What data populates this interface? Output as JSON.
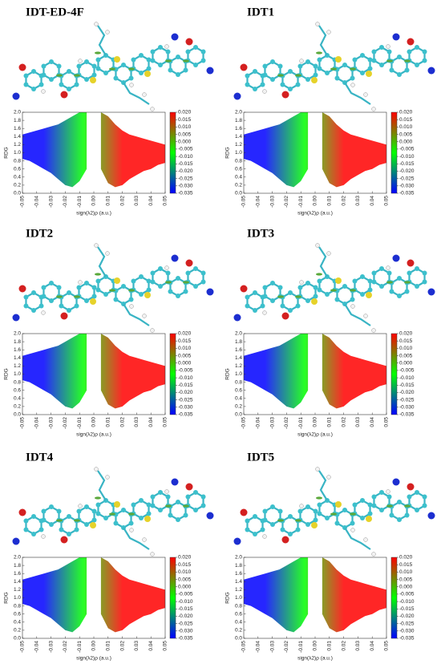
{
  "chart_data": [
    {
      "type": "area",
      "title": "IDT-ED-4F",
      "x_label": "sign(λ2)ρ (a.u.)",
      "y_label": "RDG",
      "x": [
        -0.05,
        -0.045,
        -0.04,
        -0.035,
        -0.03,
        -0.025,
        -0.02,
        -0.015,
        -0.01,
        -0.005,
        0,
        0.005,
        0.01,
        0.015,
        0.02,
        0.025,
        0.03,
        0.035,
        0.04,
        0.045,
        0.05
      ],
      "y_high": [
        1.45,
        1.5,
        1.55,
        1.6,
        1.65,
        1.7,
        1.8,
        1.9,
        2,
        2,
        null,
        2,
        1.9,
        1.7,
        1.55,
        1.45,
        1.4,
        1.35,
        1.3,
        1.25,
        1.2
      ],
      "y_low": [
        0.85,
        0.8,
        0.7,
        0.6,
        0.5,
        0.35,
        0.2,
        0.15,
        0.3,
        0.6,
        null,
        0.6,
        0.25,
        0.15,
        0.2,
        0.35,
        0.45,
        0.55,
        0.6,
        0.7,
        0.75
      ],
      "xlim": [
        -0.05,
        0.05
      ],
      "xticks": [
        -0.05,
        -0.04,
        -0.03,
        -0.02,
        -0.01,
        {
          "value": 0,
          "label": "0.00"
        },
        0.01,
        0.02,
        0.03,
        0.04,
        0.05
      ],
      "ylim": [
        0,
        2
      ],
      "yticks": [
        {
          "value": 0,
          "label": "0.0"
        },
        0.2,
        0.4,
        0.6,
        0.8,
        {
          "value": 1,
          "label": "1.0"
        },
        1.2,
        1.4,
        1.6,
        1.8,
        {
          "value": 2,
          "label": "2.0"
        }
      ],
      "colormap": [
        "#0000ff",
        "#00ff00",
        "#ff0000"
      ],
      "clim": [
        -0.035,
        0.02
      ],
      "cticks": [
        {
          "value": 0.02,
          "label": "0.020"
        },
        0.015,
        {
          "value": 0.01,
          "label": "0.010"
        },
        0.005,
        {
          "value": 0,
          "label": "0.000"
        },
        -0.005,
        {
          "value": -0.01,
          "label": "-0.010"
        },
        -0.015,
        {
          "value": -0.02,
          "label": "-0.020"
        },
        -0.025,
        {
          "value": -0.03,
          "label": "-0.030"
        },
        -0.035
      ]
    },
    {
      "type": "area",
      "title": "IDT1",
      "x_label": "sign(λ2)ρ (a.u.)",
      "y_label": "RDG",
      "x": [
        -0.05,
        -0.045,
        -0.04,
        -0.035,
        -0.03,
        -0.025,
        -0.02,
        -0.015,
        -0.01,
        -0.005,
        0,
        0.005,
        0.01,
        0.015,
        0.02,
        0.025,
        0.03,
        0.035,
        0.04,
        0.045,
        0.05
      ],
      "y_high": [
        1.45,
        1.5,
        1.55,
        1.6,
        1.65,
        1.7,
        1.8,
        1.9,
        2,
        2,
        null,
        2,
        1.9,
        1.7,
        1.55,
        1.45,
        1.4,
        1.35,
        1.3,
        1.25,
        1.2
      ],
      "y_low": [
        0.85,
        0.8,
        0.7,
        0.6,
        0.5,
        0.35,
        0.2,
        0.15,
        0.3,
        0.6,
        null,
        0.6,
        0.25,
        0.15,
        0.2,
        0.35,
        0.45,
        0.55,
        0.6,
        0.7,
        0.75
      ],
      "xlim": [
        -0.05,
        0.05
      ],
      "xticks": [
        -0.05,
        -0.04,
        -0.03,
        -0.02,
        -0.01,
        {
          "value": 0,
          "label": "0.00"
        },
        0.01,
        0.02,
        0.03,
        0.04,
        0.05
      ],
      "ylim": [
        0,
        2
      ],
      "yticks": [
        {
          "value": 0,
          "label": "0.0"
        },
        0.2,
        0.4,
        0.6,
        0.8,
        {
          "value": 1,
          "label": "1.0"
        },
        1.2,
        1.4,
        1.6,
        1.8,
        {
          "value": 2,
          "label": "2.0"
        }
      ],
      "colormap": [
        "#0000ff",
        "#00ff00",
        "#ff0000"
      ],
      "clim": [
        -0.035,
        0.02
      ],
      "cticks": [
        {
          "value": 0.02,
          "label": "0.020"
        },
        0.015,
        {
          "value": 0.01,
          "label": "0.010"
        },
        0.005,
        {
          "value": 0,
          "label": "0.000"
        },
        -0.005,
        {
          "value": -0.01,
          "label": "-0.010"
        },
        -0.015,
        {
          "value": -0.02,
          "label": "-0.020"
        },
        -0.025,
        {
          "value": -0.03,
          "label": "-0.030"
        },
        -0.035
      ]
    },
    {
      "type": "area",
      "title": "IDT2",
      "x_label": "sign(λ2)ρ (a.u.)",
      "y_label": "RDG",
      "x": [
        -0.05,
        -0.045,
        -0.04,
        -0.035,
        -0.03,
        -0.025,
        -0.02,
        -0.015,
        -0.01,
        -0.005,
        0,
        0.005,
        0.01,
        0.015,
        0.02,
        0.025,
        0.03,
        0.035,
        0.04,
        0.045,
        0.05
      ],
      "y_high": [
        1.45,
        1.5,
        1.55,
        1.6,
        1.65,
        1.7,
        1.8,
        1.9,
        2,
        2,
        null,
        2,
        1.9,
        1.7,
        1.55,
        1.45,
        1.4,
        1.35,
        1.3,
        1.25,
        1.2
      ],
      "y_low": [
        0.85,
        0.8,
        0.7,
        0.6,
        0.5,
        0.35,
        0.2,
        0.15,
        0.3,
        0.6,
        null,
        0.6,
        0.25,
        0.15,
        0.2,
        0.35,
        0.45,
        0.55,
        0.6,
        0.7,
        0.75
      ],
      "xlim": [
        -0.05,
        0.05
      ],
      "xticks": [
        -0.05,
        -0.04,
        -0.03,
        -0.02,
        -0.01,
        {
          "value": 0,
          "label": "0.00"
        },
        0.01,
        0.02,
        0.03,
        0.04,
        0.05
      ],
      "ylim": [
        0,
        2
      ],
      "yticks": [
        {
          "value": 0,
          "label": "0.0"
        },
        0.2,
        0.4,
        0.6,
        0.8,
        {
          "value": 1,
          "label": "1.0"
        },
        1.2,
        1.4,
        1.6,
        1.8,
        {
          "value": 2,
          "label": "2.0"
        }
      ],
      "colormap": [
        "#0000ff",
        "#00ff00",
        "#ff0000"
      ],
      "clim": [
        -0.035,
        0.02
      ],
      "cticks": [
        {
          "value": 0.02,
          "label": "0.020"
        },
        0.015,
        {
          "value": 0.01,
          "label": "0.010"
        },
        0.005,
        {
          "value": 0,
          "label": "0.000"
        },
        -0.005,
        {
          "value": -0.01,
          "label": "-0.010"
        },
        -0.015,
        {
          "value": -0.02,
          "label": "-0.020"
        },
        -0.025,
        {
          "value": -0.03,
          "label": "-0.030"
        },
        -0.035
      ]
    },
    {
      "type": "area",
      "title": "IDT3",
      "x_label": "sign(λ2)ρ (a.u.)",
      "y_label": "RDG",
      "x": [
        -0.05,
        -0.045,
        -0.04,
        -0.035,
        -0.03,
        -0.025,
        -0.02,
        -0.015,
        -0.01,
        -0.005,
        0,
        0.005,
        0.01,
        0.015,
        0.02,
        0.025,
        0.03,
        0.035,
        0.04,
        0.045,
        0.05
      ],
      "y_high": [
        1.45,
        1.5,
        1.55,
        1.6,
        1.65,
        1.7,
        1.8,
        1.9,
        2,
        2,
        null,
        2,
        1.9,
        1.7,
        1.55,
        1.45,
        1.4,
        1.35,
        1.3,
        1.25,
        1.2
      ],
      "y_low": [
        0.85,
        0.8,
        0.7,
        0.6,
        0.5,
        0.35,
        0.2,
        0.15,
        0.3,
        0.6,
        null,
        0.6,
        0.25,
        0.15,
        0.2,
        0.35,
        0.45,
        0.55,
        0.6,
        0.7,
        0.75
      ],
      "xlim": [
        -0.05,
        0.05
      ],
      "xticks": [
        -0.05,
        -0.04,
        -0.03,
        -0.02,
        -0.01,
        {
          "value": 0,
          "label": "0.00"
        },
        0.01,
        0.02,
        0.03,
        0.04,
        0.05
      ],
      "ylim": [
        0,
        2
      ],
      "yticks": [
        {
          "value": 0,
          "label": "0.0"
        },
        0.2,
        0.4,
        0.6,
        0.8,
        {
          "value": 1,
          "label": "1.0"
        },
        1.2,
        1.4,
        1.6,
        1.8,
        {
          "value": 2,
          "label": "2.0"
        }
      ],
      "colormap": [
        "#0000ff",
        "#00ff00",
        "#ff0000"
      ],
      "clim": [
        -0.035,
        0.02
      ],
      "cticks": [
        {
          "value": 0.02,
          "label": "0.020"
        },
        0.015,
        {
          "value": 0.01,
          "label": "0.010"
        },
        0.005,
        {
          "value": 0,
          "label": "0.000"
        },
        -0.005,
        {
          "value": -0.01,
          "label": "-0.010"
        },
        -0.015,
        {
          "value": -0.02,
          "label": "-0.020"
        },
        -0.025,
        {
          "value": -0.03,
          "label": "-0.030"
        },
        -0.035
      ]
    },
    {
      "type": "area",
      "title": "IDT4",
      "x_label": "sign(λ2)ρ (a.u.)",
      "y_label": "RDG",
      "x": [
        -0.05,
        -0.045,
        -0.04,
        -0.035,
        -0.03,
        -0.025,
        -0.02,
        -0.015,
        -0.01,
        -0.005,
        0,
        0.005,
        0.01,
        0.015,
        0.02,
        0.025,
        0.03,
        0.035,
        0.04,
        0.045,
        0.05
      ],
      "y_high": [
        1.45,
        1.5,
        1.55,
        1.6,
        1.65,
        1.7,
        1.8,
        1.9,
        2,
        2,
        null,
        2,
        1.9,
        1.7,
        1.55,
        1.45,
        1.4,
        1.35,
        1.3,
        1.25,
        1.2
      ],
      "y_low": [
        0.85,
        0.8,
        0.7,
        0.6,
        0.5,
        0.35,
        0.2,
        0.15,
        0.3,
        0.6,
        null,
        0.6,
        0.25,
        0.15,
        0.2,
        0.35,
        0.45,
        0.55,
        0.6,
        0.7,
        0.75
      ],
      "xlim": [
        -0.05,
        0.05
      ],
      "xticks": [
        -0.05,
        -0.04,
        -0.03,
        -0.02,
        -0.01,
        {
          "value": 0,
          "label": "0.00"
        },
        0.01,
        0.02,
        0.03,
        0.04,
        0.05
      ],
      "ylim": [
        0,
        2
      ],
      "yticks": [
        {
          "value": 0,
          "label": "0.0"
        },
        0.2,
        0.4,
        0.6,
        0.8,
        {
          "value": 1,
          "label": "1.0"
        },
        1.2,
        1.4,
        1.6,
        1.8,
        {
          "value": 2,
          "label": "2.0"
        }
      ],
      "colormap": [
        "#0000ff",
        "#00ff00",
        "#ff0000"
      ],
      "clim": [
        -0.035,
        0.02
      ],
      "cticks": [
        {
          "value": 0.02,
          "label": "0.020"
        },
        0.015,
        {
          "value": 0.01,
          "label": "0.010"
        },
        0.005,
        {
          "value": 0,
          "label": "0.000"
        },
        -0.005,
        {
          "value": -0.01,
          "label": "-0.010"
        },
        -0.015,
        {
          "value": -0.02,
          "label": "-0.020"
        },
        -0.025,
        {
          "value": -0.03,
          "label": "-0.030"
        },
        -0.035
      ]
    },
    {
      "type": "area",
      "title": "IDT5",
      "x_label": "sign(λ2)ρ (a.u.)",
      "y_label": "RDG",
      "x": [
        -0.05,
        -0.045,
        -0.04,
        -0.035,
        -0.03,
        -0.025,
        -0.02,
        -0.015,
        -0.01,
        -0.005,
        0,
        0.005,
        0.01,
        0.015,
        0.02,
        0.025,
        0.03,
        0.035,
        0.04,
        0.045,
        0.05
      ],
      "y_high": [
        1.45,
        1.5,
        1.55,
        1.6,
        1.65,
        1.7,
        1.8,
        1.9,
        2,
        2,
        null,
        2,
        1.9,
        1.7,
        1.55,
        1.45,
        1.4,
        1.35,
        1.3,
        1.25,
        1.2
      ],
      "y_low": [
        0.85,
        0.8,
        0.7,
        0.6,
        0.5,
        0.35,
        0.2,
        0.15,
        0.3,
        0.6,
        null,
        0.6,
        0.25,
        0.15,
        0.2,
        0.35,
        0.45,
        0.55,
        0.6,
        0.7,
        0.75
      ],
      "xlim": [
        -0.05,
        0.05
      ],
      "xticks": [
        -0.05,
        -0.04,
        -0.03,
        -0.02,
        -0.01,
        {
          "value": 0,
          "label": "0.00"
        },
        0.01,
        0.02,
        0.03,
        0.04,
        0.05
      ],
      "ylim": [
        0,
        2
      ],
      "yticks": [
        {
          "value": 0,
          "label": "0.0"
        },
        0.2,
        0.4,
        0.6,
        0.8,
        {
          "value": 1,
          "label": "1.0"
        },
        1.2,
        1.4,
        1.6,
        1.8,
        {
          "value": 2,
          "label": "2.0"
        }
      ],
      "colormap": [
        "#0000ff",
        "#00ff00",
        "#ff0000"
      ],
      "clim": [
        -0.035,
        0.02
      ],
      "cticks": [
        {
          "value": 0.02,
          "label": "0.020"
        },
        0.015,
        {
          "value": 0.01,
          "label": "0.010"
        },
        0.005,
        {
          "value": 0,
          "label": "0.000"
        },
        -0.005,
        {
          "value": -0.01,
          "label": "-0.010"
        },
        -0.015,
        {
          "value": -0.02,
          "label": "-0.020"
        },
        -0.025,
        {
          "value": -0.03,
          "label": "-0.030"
        },
        -0.035
      ]
    }
  ]
}
